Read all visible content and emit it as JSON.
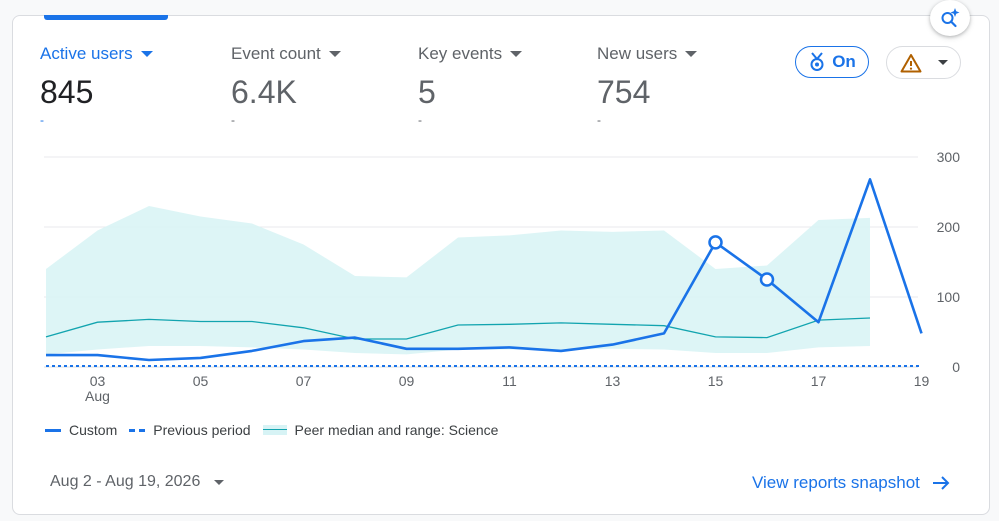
{
  "metrics": [
    {
      "label": "Active users",
      "value": "845",
      "dash": "-",
      "active": true
    },
    {
      "label": "Event count",
      "value": "6.4K",
      "dash": "-",
      "active": false
    },
    {
      "label": "Key events",
      "value": "5",
      "dash": "-",
      "active": false
    },
    {
      "label": "New users",
      "value": "754",
      "dash": "-",
      "active": false
    }
  ],
  "chips": {
    "on_label": "On"
  },
  "icons": {
    "insights": "insights-sparkle-search-icon",
    "badge": "medal-badge-icon",
    "warning": "warning-triangle-icon",
    "chevron": "chevron-down-icon",
    "arrow": "arrow-right-icon"
  },
  "colors": {
    "accent": "#1a73e8",
    "peer_band": "#d7f3f5",
    "peer_median": "#12a4af",
    "warning": "#b06000"
  },
  "legend": {
    "custom": "Custom",
    "previous": "Previous period",
    "peer": "Peer median and range: Science"
  },
  "footer": {
    "date_range": "Aug 2 - Aug 19, 2026",
    "view_link": "View reports snapshot"
  },
  "chart_data": {
    "type": "line",
    "x": [
      "Aug 2",
      "Aug 3",
      "Aug 4",
      "Aug 5",
      "Aug 6",
      "Aug 7",
      "Aug 8",
      "Aug 9",
      "Aug 10",
      "Aug 11",
      "Aug 12",
      "Aug 13",
      "Aug 14",
      "Aug 15",
      "Aug 16",
      "Aug 17",
      "Aug 18",
      "Aug 19"
    ],
    "x_tick_labels": [
      {
        "label": "03",
        "sub": "Aug",
        "index": 1
      },
      {
        "label": "05",
        "index": 3
      },
      {
        "label": "07",
        "index": 5
      },
      {
        "label": "09",
        "index": 7
      },
      {
        "label": "11",
        "index": 9
      },
      {
        "label": "13",
        "index": 11
      },
      {
        "label": "15",
        "index": 13
      },
      {
        "label": "17",
        "index": 15
      },
      {
        "label": "19",
        "index": 17
      }
    ],
    "y_ticks": [
      0,
      100,
      200,
      300
    ],
    "ylim": [
      0,
      300
    ],
    "grid": true,
    "legend_position": "bottom-left",
    "series": [
      {
        "name": "Custom",
        "style": "solid",
        "values": [
          17,
          17,
          10,
          13,
          23,
          37,
          42,
          26,
          26,
          28,
          23,
          32,
          48,
          178,
          125,
          64,
          268,
          48
        ],
        "markers": [
          13,
          14
        ]
      },
      {
        "name": "Previous period",
        "style": "dashed",
        "values": [
          0,
          0,
          0,
          0,
          0,
          0,
          0,
          0,
          0,
          0,
          0,
          0,
          0,
          0,
          0,
          0,
          0,
          0
        ]
      }
    ],
    "peer": {
      "name": "Peer median and range: Science",
      "median": [
        43,
        64,
        68,
        65,
        65,
        56,
        40,
        40,
        60,
        61,
        63,
        61,
        59,
        43,
        42,
        67,
        70
      ],
      "upper": [
        140,
        195,
        230,
        215,
        205,
        175,
        130,
        128,
        185,
        188,
        195,
        193,
        195,
        140,
        145,
        210,
        213
      ],
      "lower": [
        18,
        25,
        30,
        30,
        28,
        25,
        20,
        18,
        25,
        25,
        25,
        26,
        25,
        20,
        20,
        28,
        30
      ]
    }
  }
}
